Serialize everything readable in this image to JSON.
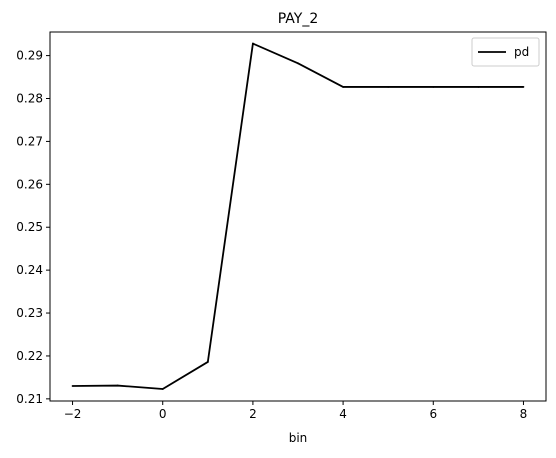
{
  "chart_data": {
    "type": "line",
    "title": "PAY_2",
    "xlabel": "bin",
    "ylabel": "",
    "xlim": [
      -2.5,
      8.5
    ],
    "ylim": [
      0.2095,
      0.2955
    ],
    "xticks": [
      -2,
      0,
      2,
      4,
      6,
      8
    ],
    "xtick_labels": [
      "−2",
      "0",
      "2",
      "4",
      "6",
      "8"
    ],
    "yticks": [
      0.21,
      0.22,
      0.23,
      0.24,
      0.25,
      0.26,
      0.27,
      0.28,
      0.29
    ],
    "ytick_labels": [
      "0.21",
      "0.22",
      "0.23",
      "0.24",
      "0.25",
      "0.26",
      "0.27",
      "0.28",
      "0.29"
    ],
    "grid": false,
    "legend_position": "top-right",
    "series": [
      {
        "name": "pd",
        "color": "#000000",
        "x": [
          -2,
          -1,
          0,
          1,
          2,
          3,
          4,
          5,
          6,
          7,
          8
        ],
        "y": [
          0.213,
          0.2131,
          0.2123,
          0.2186,
          0.2928,
          0.2882,
          0.2827,
          0.2827,
          0.2827,
          0.2827,
          0.2827
        ]
      }
    ]
  }
}
